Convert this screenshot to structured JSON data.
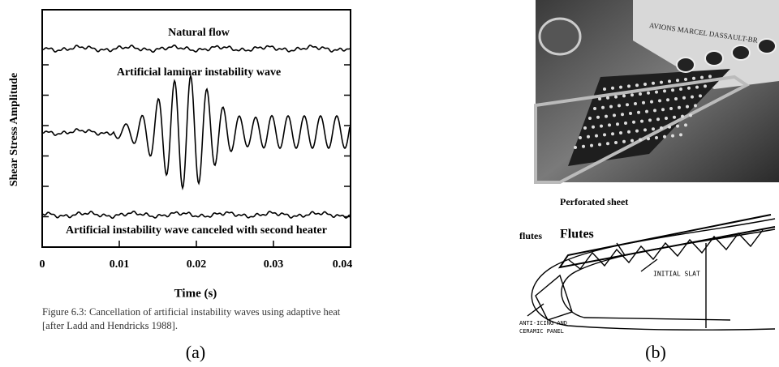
{
  "figure_a": {
    "y_label": "Shear Stress Amplitude",
    "x_label": "Time (s)",
    "x_ticks": [
      "0",
      "0.01",
      "0.02",
      "0.03",
      "0.04"
    ],
    "trace_labels": [
      "Natural flow",
      "Artificial laminar instability wave",
      "Artificial instability wave canceled with second heater"
    ],
    "caption": [
      "Figure 6.3: Cancellation of artificial instability waves using adaptive heat",
      "[after Ladd and Hendricks 1988]."
    ],
    "panel_label": "(a)"
  },
  "figure_b": {
    "photo_text": "AVIONS MARCEL DASSAULT-BR",
    "diagram_labels": [
      "Perforated sheet",
      "flutes",
      "Flutes",
      "INITIAL SLAT",
      "ANTI-ICING AND",
      "CERAMIC PANEL"
    ],
    "panel_label": "(b)"
  }
}
